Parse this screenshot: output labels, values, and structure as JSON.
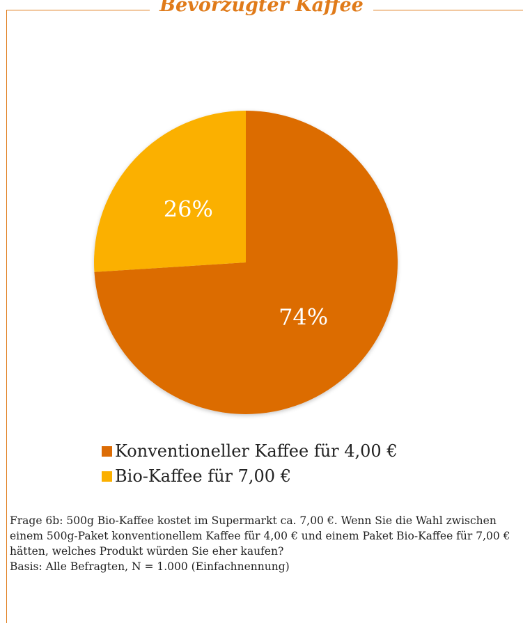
{
  "chart_data": {
    "type": "pie",
    "title": "Bevorzugter Kaffee",
    "start_angle": 0,
    "direction": "clockwise",
    "legend_position": "bottom",
    "slices": [
      {
        "label": "Konventioneller Kaffee für 4,00 €",
        "value": 74,
        "value_label": "74%",
        "color": "#dc6c05"
      },
      {
        "label": "Bio-Kaffee für 7,00 €",
        "value": 26,
        "value_label": "26%",
        "color": "#fbb000"
      }
    ],
    "data_label_color": "#ffffff"
  },
  "accent_color": "#e07b1a",
  "footnote": {
    "question": "Frage 6b: 500g Bio-Kaffee kostet im Supermarkt ca. 7,00 €. Wenn Sie die Wahl zwischen einem 500g-Paket konventionellem Kaffee für 4,00 € und einem Paket Bio-Kaffee für 7,00 € hätten, welches Produkt würden Sie eher kaufen?",
    "basis": "Basis: Alle Befragten, N = 1.000 (Einfachnennung)"
  }
}
